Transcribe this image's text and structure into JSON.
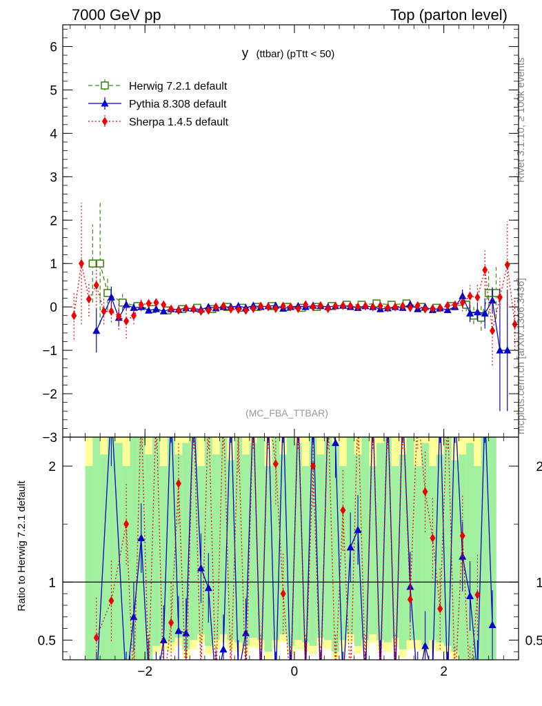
{
  "header": {
    "left": "7000 GeV pp",
    "right": "Top (parton level)"
  },
  "side_labels": {
    "rivet": "Rivet 3.1.10, ≥ 100k events",
    "mcplots": "mcplots.cern.ch [arXiv:1306.3436]"
  },
  "chart_data": {
    "type": "line",
    "title_main": "y",
    "title_sub": "(ttbar)  (pTtt < 50)",
    "analysis_label": "(MC_FBA_TTBAR)",
    "ratio_ylabel": "Ratio to Herwig 7.2.1 default",
    "xlim": [
      -3.1,
      3.0
    ],
    "ylim": [
      -3.0,
      6.5
    ],
    "ratio_ylim": [
      0.33,
      2.25
    ],
    "x_ticks": [
      -2,
      0,
      2
    ],
    "x_tick_labels": [
      "−2",
      "0",
      "2"
    ],
    "y_ticks": [
      -3,
      -2,
      -1,
      0,
      1,
      2,
      3,
      4,
      5,
      6
    ],
    "y_tick_labels": [
      "−3",
      "−2",
      "−1",
      "0",
      "1",
      "2",
      "3",
      "4",
      "5",
      "6"
    ],
    "ratio_ticks": [
      0.5,
      1,
      2
    ],
    "ratio_tick_labels": [
      "0.5",
      "1",
      "2"
    ],
    "legend_position": "top-left",
    "colors": {
      "herwig": "#3a8a12",
      "pythia": "#0000cc",
      "sherpa": "#ee0000",
      "band_green": "#a0f0a0",
      "band_yellow": "#ffff99"
    },
    "series": [
      {
        "name": "Herwig 7.2.1 default",
        "marker": "open-square",
        "x": [
          -2.7,
          -2.6,
          -2.5,
          -2.3,
          -2.1,
          -1.9,
          -1.7,
          -1.5,
          -1.3,
          -1.1,
          -0.9,
          -0.7,
          -0.5,
          -0.3,
          -0.1,
          0.1,
          0.3,
          0.5,
          0.7,
          0.9,
          1.1,
          1.3,
          1.5,
          1.7,
          1.9,
          2.1,
          2.3,
          2.4,
          2.5,
          2.6,
          2.7
        ],
        "y": [
          1.0,
          1.0,
          0.32,
          0.1,
          0.02,
          -0.05,
          -0.08,
          -0.05,
          -0.02,
          -0.05,
          0.0,
          -0.02,
          0.0,
          0.02,
          0.0,
          -0.02,
          0.0,
          0.02,
          0.05,
          0.05,
          0.08,
          0.05,
          0.08,
          0.0,
          -0.02,
          0.02,
          0.05,
          -0.2,
          -0.25,
          0.32,
          0.32
        ],
        "err": [
          0.9,
          1.4,
          0.4,
          0.2,
          0.1,
          0.06,
          0.05,
          0.05,
          0.05,
          0.04,
          0.04,
          0.04,
          0.04,
          0.04,
          0.04,
          0.04,
          0.04,
          0.04,
          0.04,
          0.04,
          0.05,
          0.05,
          0.05,
          0.05,
          0.06,
          0.08,
          0.15,
          0.2,
          0.3,
          0.5,
          0.6
        ]
      },
      {
        "name": "Pythia 8.308 default",
        "marker": "filled-triangle",
        "x": [
          -2.65,
          -2.45,
          -2.35,
          -2.25,
          -2.15,
          -2.05,
          -1.95,
          -1.85,
          -1.75,
          -1.65,
          -1.55,
          -1.45,
          -1.35,
          -1.25,
          -1.15,
          -1.05,
          -0.95,
          -0.85,
          -0.75,
          -0.65,
          -0.55,
          -0.45,
          -0.35,
          -0.25,
          -0.15,
          -0.05,
          0.05,
          0.15,
          0.25,
          0.35,
          0.45,
          0.55,
          0.65,
          0.75,
          0.85,
          0.95,
          1.05,
          1.15,
          1.25,
          1.35,
          1.45,
          1.55,
          1.65,
          1.75,
          1.85,
          1.95,
          2.05,
          2.15,
          2.25,
          2.35,
          2.45,
          2.55,
          2.65,
          2.75,
          2.85
        ],
        "y": [
          -0.55,
          0.22,
          -0.25,
          0.05,
          -0.02,
          0.0,
          -0.08,
          -0.05,
          -0.1,
          -0.05,
          -0.06,
          -0.03,
          -0.04,
          -0.06,
          0.0,
          -0.03,
          0.0,
          0.0,
          0.02,
          -0.02,
          0.03,
          0.0,
          0.02,
          0.03,
          -0.04,
          0.0,
          0.02,
          0.0,
          0.03,
          0.02,
          0.0,
          0.02,
          0.03,
          0.0,
          -0.02,
          0.02,
          0.0,
          -0.05,
          -0.03,
          0.0,
          -0.02,
          0.06,
          -0.05,
          0.0,
          -0.07,
          -0.03,
          -0.07,
          0.0,
          0.25,
          -0.15,
          -0.12,
          -0.15,
          0.15,
          -1.0,
          -1.0
        ],
        "err": [
          0.5,
          0.25,
          0.2,
          0.12,
          0.1,
          0.06,
          0.05,
          0.05,
          0.05,
          0.05,
          0.04,
          0.04,
          0.04,
          0.04,
          0.04,
          0.04,
          0.04,
          0.04,
          0.04,
          0.04,
          0.04,
          0.04,
          0.04,
          0.04,
          0.04,
          0.04,
          0.04,
          0.04,
          0.04,
          0.04,
          0.04,
          0.04,
          0.04,
          0.04,
          0.04,
          0.04,
          0.04,
          0.04,
          0.04,
          0.04,
          0.04,
          0.05,
          0.05,
          0.05,
          0.05,
          0.06,
          0.06,
          0.08,
          0.15,
          0.2,
          0.2,
          0.35,
          0.3,
          1.4,
          1.4
        ]
      },
      {
        "name": "Sherpa 1.4.5 default",
        "marker": "filled-diamond",
        "x": [
          -2.95,
          -2.85,
          -2.75,
          -2.65,
          -2.55,
          -2.45,
          -2.35,
          -2.25,
          -2.15,
          -2.05,
          -1.95,
          -1.85,
          -1.75,
          -1.65,
          -1.55,
          -1.45,
          -1.35,
          -1.25,
          -1.15,
          -1.05,
          -0.95,
          -0.85,
          -0.75,
          -0.65,
          -0.55,
          -0.45,
          -0.35,
          -0.25,
          -0.15,
          -0.05,
          0.05,
          0.15,
          0.25,
          0.35,
          0.45,
          0.55,
          0.65,
          0.75,
          0.85,
          0.95,
          1.05,
          1.15,
          1.25,
          1.35,
          1.45,
          1.55,
          1.65,
          1.75,
          1.85,
          1.95,
          2.05,
          2.15,
          2.25,
          2.35,
          2.45,
          2.55,
          2.65,
          2.75,
          2.85,
          2.95
        ],
        "y": [
          -0.2,
          1.0,
          0.18,
          0.5,
          -0.1,
          -0.1,
          -0.22,
          -0.33,
          -0.2,
          0.05,
          0.08,
          0.1,
          0.05,
          -0.05,
          -0.08,
          -0.03,
          -0.05,
          -0.1,
          -0.08,
          0.0,
          0.02,
          -0.05,
          -0.06,
          -0.08,
          -0.04,
          0.02,
          0.0,
          -0.04,
          0.02,
          0.0,
          -0.04,
          0.05,
          0.0,
          0.03,
          -0.04,
          0.02,
          0.03,
          0.02,
          0.0,
          0.02,
          0.0,
          0.02,
          -0.02,
          0.0,
          0.02,
          -0.02,
          0.03,
          -0.05,
          -0.04,
          -0.02,
          0.03,
          0.05,
          0.1,
          0.25,
          0.22,
          0.85,
          -0.55,
          0.22,
          0.97,
          -0.4
        ],
        "err": [
          0.55,
          1.4,
          0.4,
          0.55,
          0.3,
          0.25,
          0.3,
          0.4,
          0.2,
          0.15,
          0.1,
          0.1,
          0.08,
          0.07,
          0.06,
          0.06,
          0.06,
          0.06,
          0.06,
          0.05,
          0.05,
          0.05,
          0.05,
          0.05,
          0.05,
          0.05,
          0.05,
          0.05,
          0.05,
          0.05,
          0.05,
          0.05,
          0.05,
          0.05,
          0.05,
          0.05,
          0.05,
          0.05,
          0.05,
          0.05,
          0.05,
          0.05,
          0.05,
          0.05,
          0.05,
          0.05,
          0.06,
          0.06,
          0.07,
          0.08,
          0.1,
          0.12,
          0.2,
          0.25,
          0.3,
          0.45,
          0.8,
          0.45,
          1.0,
          0.6
        ]
      }
    ],
    "ratio_band": {
      "x_edges": [
        -2.8,
        -2.7,
        -2.6,
        -2.5,
        -2.4,
        -2.3,
        -2.2,
        -2.1,
        -2.0,
        -1.9,
        -1.8,
        -1.7,
        -1.6,
        -1.5,
        -1.4,
        -1.3,
        -1.2,
        -1.1,
        -1.0,
        -0.9,
        -0.8,
        -0.7,
        -0.6,
        -0.5,
        -0.4,
        -0.3,
        -0.2,
        -0.1,
        0.0,
        0.1,
        0.2,
        0.3,
        0.4,
        0.5,
        0.6,
        0.7,
        0.8,
        0.9,
        1.0,
        1.1,
        1.2,
        1.3,
        1.4,
        1.5,
        1.6,
        1.7,
        1.8,
        1.9,
        2.0,
        2.1,
        2.2,
        2.3,
        2.4,
        2.5,
        2.6,
        2.7
      ],
      "green_hi": [
        2.0,
        2.25,
        2.1,
        2.25,
        2.2,
        2.0,
        2.25,
        2.25,
        2.1,
        2.25,
        2.0,
        2.25,
        2.1,
        2.2,
        2.25,
        2.0,
        2.25,
        2.1,
        2.25,
        2.05,
        2.25,
        2.1,
        2.2,
        2.25,
        2.0,
        2.25,
        2.1,
        2.25,
        2.2,
        2.0,
        2.25,
        2.1,
        2.25,
        2.2,
        2.0,
        2.25,
        2.1,
        2.25,
        2.0,
        2.2,
        2.25,
        2.0,
        2.1,
        2.25,
        2.0,
        2.2,
        2.0,
        2.1,
        2.25,
        2.05,
        2.1,
        2.2,
        2.0,
        2.25,
        2.25
      ],
      "green_lo": [
        0.33,
        0.33,
        0.33,
        0.33,
        0.33,
        0.33,
        0.33,
        0.33,
        0.33,
        0.45,
        0.5,
        0.48,
        0.52,
        0.42,
        0.5,
        0.55,
        0.45,
        0.5,
        0.55,
        0.5,
        0.48,
        0.45,
        0.52,
        0.5,
        0.4,
        0.5,
        0.55,
        0.45,
        0.5,
        0.48,
        0.45,
        0.52,
        0.5,
        0.4,
        0.5,
        0.55,
        0.45,
        0.5,
        0.55,
        0.5,
        0.48,
        0.52,
        0.42,
        0.5,
        0.5,
        0.45,
        0.5,
        0.48,
        0.45,
        0.4,
        0.33,
        0.33,
        0.33,
        0.33,
        0.33
      ],
      "yellow_hi": [
        2.25,
        2.25,
        2.25,
        2.25,
        2.25,
        2.25,
        2.25,
        2.25,
        2.25,
        2.25,
        2.25,
        2.25,
        2.25,
        2.25,
        2.25,
        2.25,
        2.25,
        2.25,
        2.25,
        2.25,
        2.25,
        2.25,
        2.25,
        2.25,
        2.25,
        2.25,
        2.25,
        2.25,
        2.25,
        2.25,
        2.25,
        2.25,
        2.25,
        2.25,
        2.25,
        2.25,
        2.25,
        2.25,
        2.25,
        2.25,
        2.25,
        2.25,
        2.25,
        2.25,
        2.25,
        2.25,
        2.25,
        2.25,
        2.25,
        2.25,
        2.25,
        2.25,
        2.25,
        2.25,
        2.25
      ],
      "yellow_lo": [
        0.33,
        0.33,
        0.33,
        0.33,
        0.33,
        0.33,
        0.33,
        0.33,
        0.33,
        0.38,
        0.42,
        0.4,
        0.45,
        0.35,
        0.42,
        0.48,
        0.38,
        0.42,
        0.48,
        0.42,
        0.4,
        0.38,
        0.44,
        0.42,
        0.34,
        0.42,
        0.48,
        0.38,
        0.42,
        0.4,
        0.38,
        0.44,
        0.42,
        0.34,
        0.42,
        0.48,
        0.38,
        0.42,
        0.48,
        0.42,
        0.4,
        0.44,
        0.35,
        0.42,
        0.42,
        0.38,
        0.42,
        0.4,
        0.38,
        0.34,
        0.33,
        0.33,
        0.33,
        0.33,
        0.33
      ]
    },
    "ratio_series": [
      {
        "name": "Pythia 8.308 default",
        "x": [
          -2.65,
          -2.45,
          -2.25,
          -2.15,
          -2.05,
          -1.95,
          -1.85,
          -1.75,
          -1.65,
          -1.55,
          -1.45,
          -1.35,
          -1.25,
          -1.15,
          -1.05,
          -0.95,
          -0.85,
          -0.75,
          -0.65,
          -0.55,
          -0.45,
          -0.35,
          -0.25,
          -0.15,
          -0.05,
          0.05,
          0.15,
          0.25,
          0.35,
          0.45,
          0.55,
          0.65,
          0.75,
          0.85,
          0.95,
          1.05,
          1.15,
          1.25,
          1.35,
          1.45,
          1.55,
          1.65,
          1.75,
          1.85,
          1.95,
          2.05,
          2.15,
          2.25,
          2.35,
          2.45,
          2.55,
          2.65
        ],
        "y": [
          0.1,
          2.5,
          0.1,
          0.7,
          1.38,
          0.2,
          0.1,
          0.5,
          2.5,
          0.58,
          0.56,
          2.5,
          1.12,
          0.95,
          0.1,
          0.42,
          2.5,
          0.2,
          0.56,
          2.5,
          0.1,
          2.5,
          0.1,
          2.5,
          0.1,
          2.5,
          0.2,
          2.5,
          0.1,
          2.5,
          2.2,
          0.1,
          1.3,
          1.45,
          0.1,
          2.5,
          0.2,
          2.5,
          0.1,
          2.5,
          0.96,
          0.1,
          0.45,
          0.2,
          2.5,
          0.1,
          2.5,
          1.22,
          0.88,
          0.2,
          2.5,
          0.63
        ],
        "err": [
          0.3,
          0.5,
          0.3,
          0.3,
          0.3,
          0.3,
          0.3,
          0.3,
          0.3,
          0.3,
          0.3,
          0.3,
          0.3,
          0.3,
          0.3,
          0.3,
          0.3,
          0.3,
          0.3,
          0.3,
          0.3,
          0.3,
          0.3,
          0.3,
          0.3,
          0.3,
          0.3,
          0.3,
          0.3,
          0.3,
          0.3,
          0.3,
          0.3,
          0.3,
          0.3,
          0.3,
          0.3,
          0.3,
          0.3,
          0.3,
          0.3,
          0.3,
          0.3,
          0.3,
          0.3,
          0.3,
          0.3,
          0.3,
          0.3,
          0.3,
          0.3,
          0.3
        ]
      },
      {
        "name": "Sherpa 1.4.5 default",
        "x": [
          -2.65,
          -2.45,
          -2.25,
          -2.15,
          -2.05,
          -1.95,
          -1.85,
          -1.75,
          -1.65,
          -1.55,
          -1.45,
          -1.35,
          -1.25,
          -1.15,
          -1.05,
          -0.95,
          -0.85,
          -0.75,
          -0.65,
          -0.55,
          -0.45,
          -0.35,
          -0.25,
          -0.15,
          -0.05,
          0.05,
          0.15,
          0.25,
          0.35,
          0.45,
          0.55,
          0.65,
          0.75,
          0.85,
          0.95,
          1.05,
          1.15,
          1.25,
          1.35,
          1.45,
          1.55,
          1.65,
          1.75,
          1.85,
          1.95,
          2.05,
          2.15,
          2.25,
          2.35,
          2.45
        ],
        "y": [
          0.52,
          0.84,
          1.5,
          0.1,
          2.5,
          0.2,
          2.5,
          0.1,
          0.65,
          1.85,
          0.1,
          2.5,
          0.2,
          2.5,
          0.1,
          2.5,
          0.2,
          2.3,
          0.1,
          2.5,
          0.2,
          2.5,
          2.02,
          0.9,
          0.1,
          2.5,
          0.2,
          2.0,
          0.1,
          2.5,
          0.2,
          1.62,
          0.1,
          2.5,
          0.2,
          2.5,
          0.1,
          2.5,
          0.2,
          2.5,
          0.85,
          2.5,
          1.78,
          1.38,
          0.77,
          2.5,
          0.1,
          1.4,
          0.1,
          0.89
        ],
        "err": [
          0.35,
          0.35,
          0.35,
          0.35,
          0.35,
          0.35,
          0.35,
          0.35,
          0.35,
          0.35,
          0.35,
          0.35,
          0.35,
          0.35,
          0.35,
          0.35,
          0.35,
          0.35,
          0.35,
          0.35,
          0.35,
          0.35,
          0.35,
          0.35,
          0.35,
          0.35,
          0.35,
          0.35,
          0.35,
          0.35,
          0.35,
          0.35,
          0.35,
          0.35,
          0.35,
          0.35,
          0.35,
          0.35,
          0.35,
          0.35,
          0.35,
          0.35,
          0.35,
          0.35,
          0.35,
          0.35,
          0.35,
          0.35,
          0.35,
          0.35
        ]
      }
    ]
  }
}
